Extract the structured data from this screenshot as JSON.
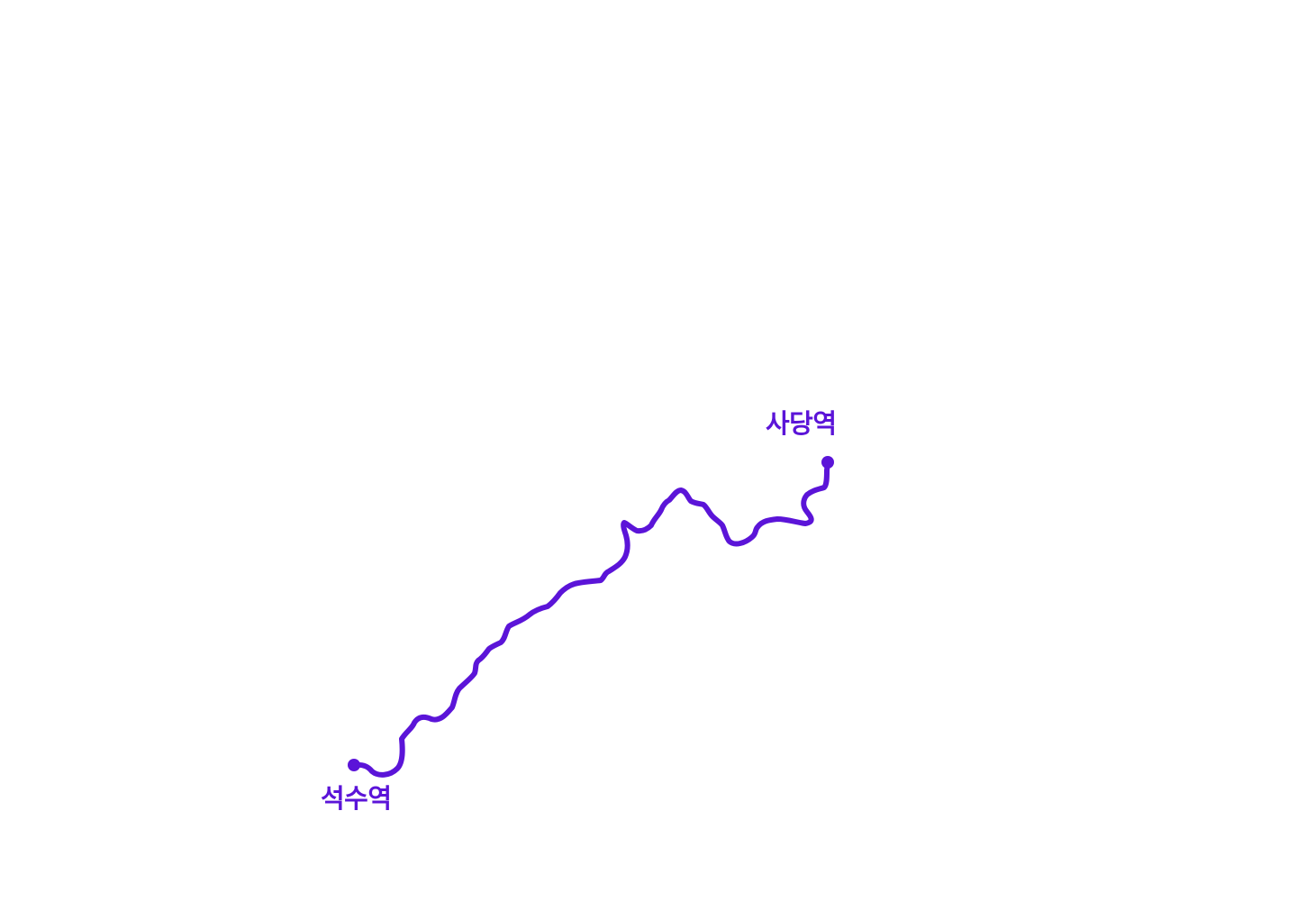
{
  "route": {
    "color": "#5b14d8",
    "start_station": "석수역",
    "end_station": "사당역"
  }
}
